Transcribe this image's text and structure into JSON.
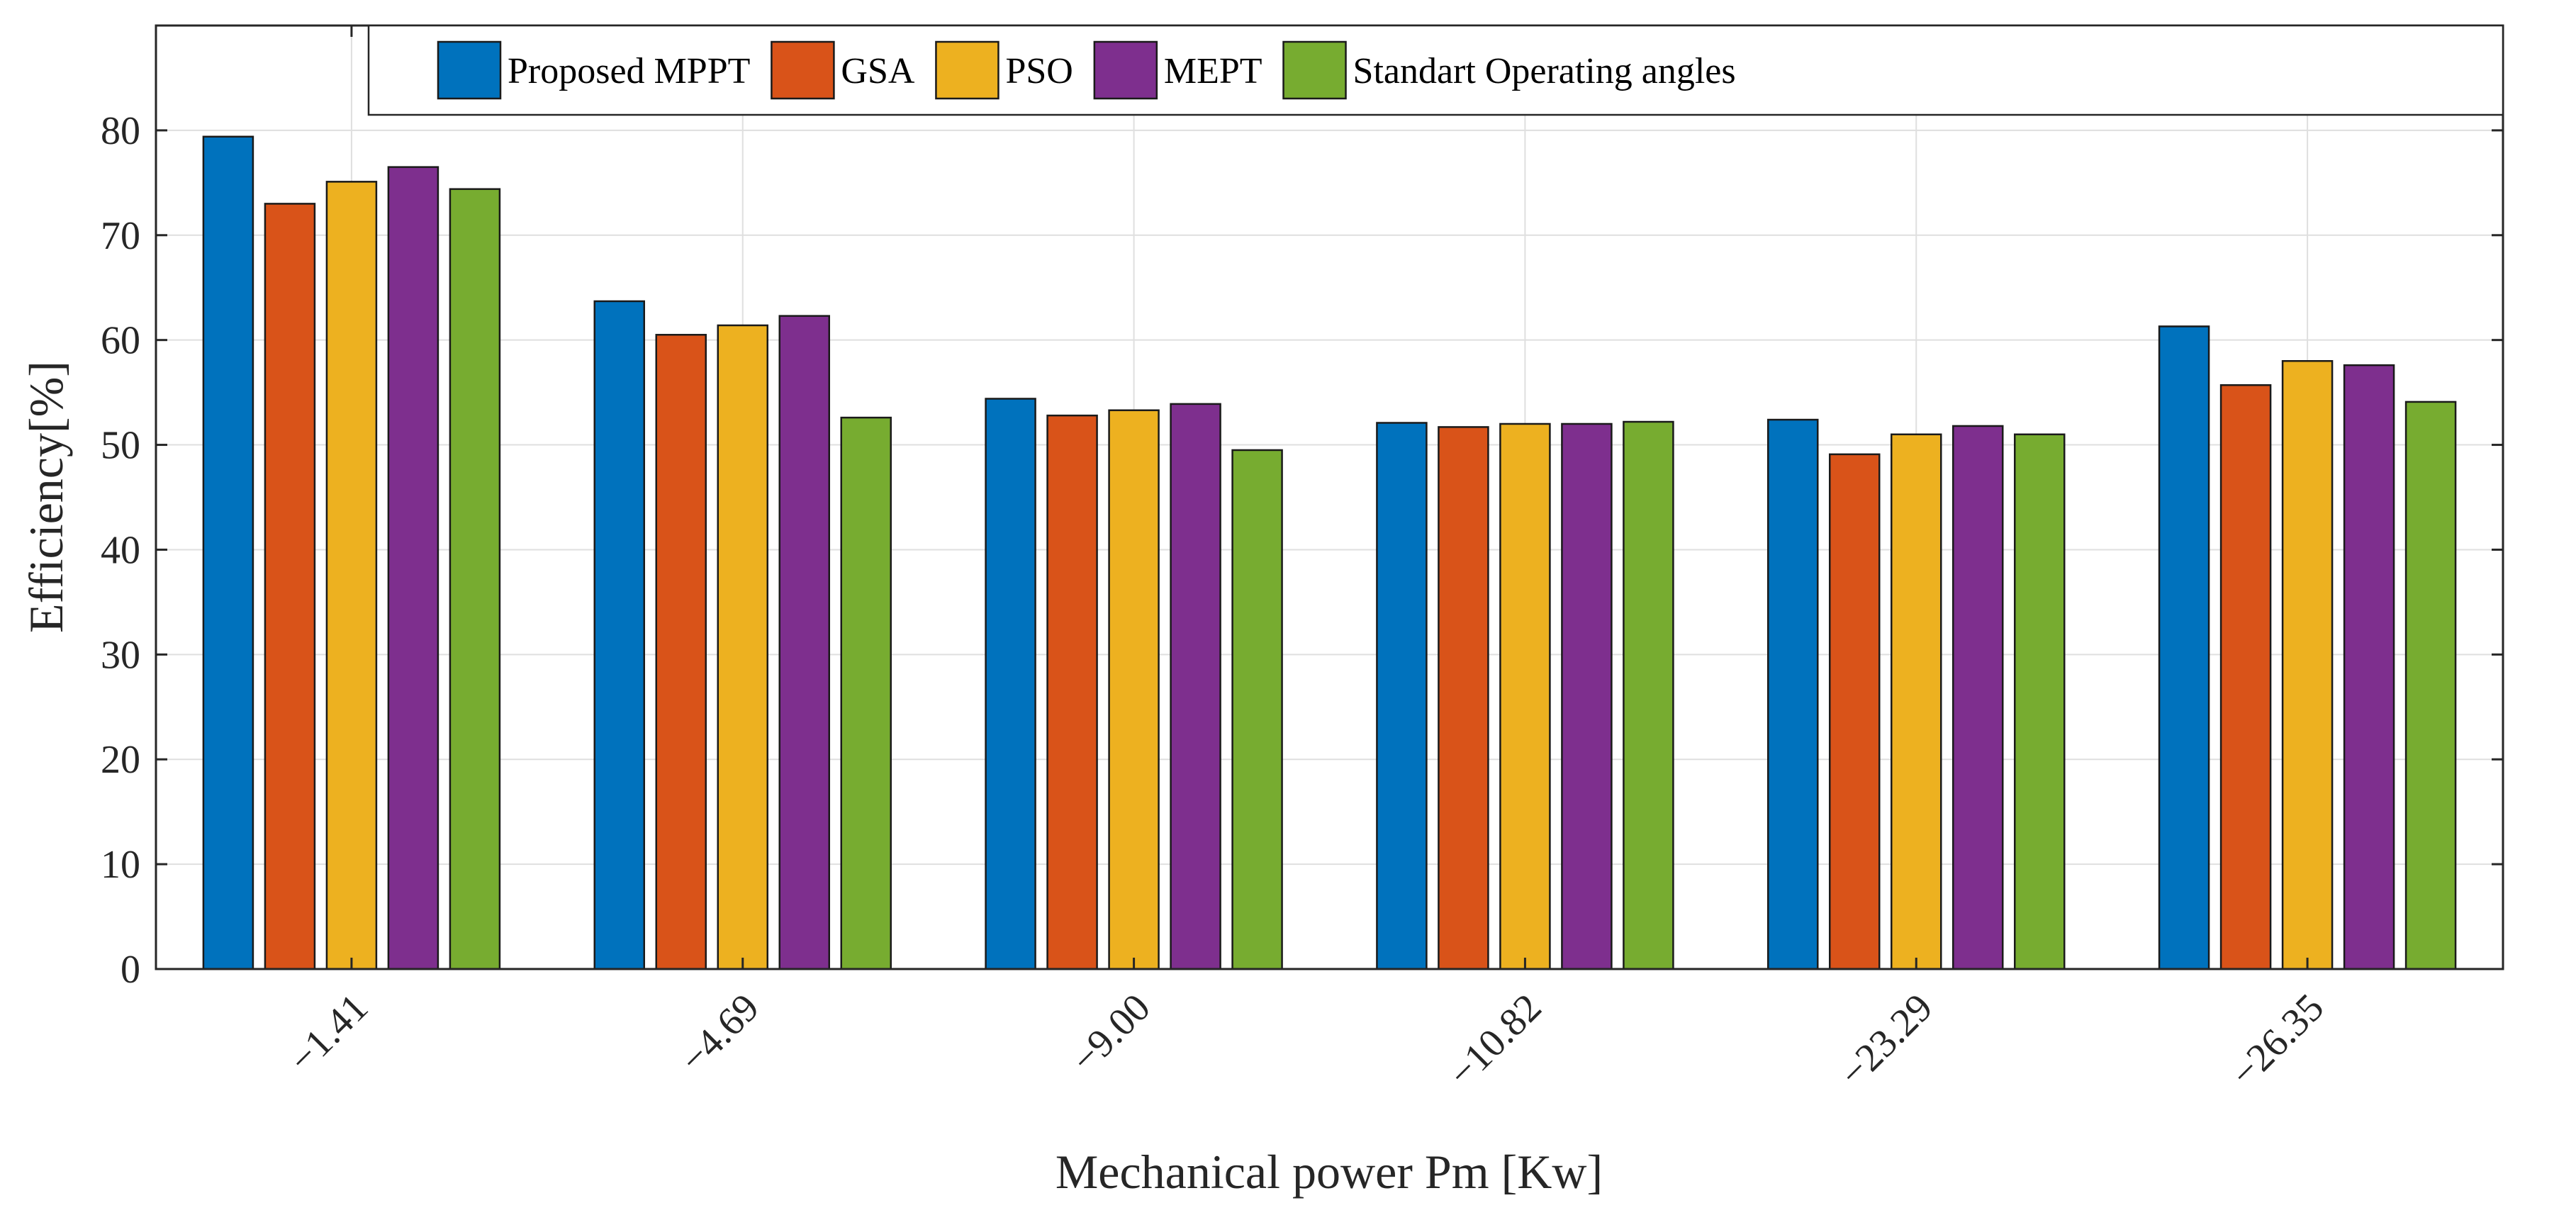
{
  "chart_data": {
    "type": "bar",
    "title": "",
    "xlabel": "Mechanical power Pm [Kw]",
    "ylabel": "Efficiency[%]",
    "ylim": [
      0,
      90
    ],
    "yticks": [
      0,
      10,
      20,
      30,
      40,
      50,
      60,
      70,
      80
    ],
    "grid": true,
    "legend_position": "top",
    "categories": [
      "−1.41",
      "−4.69",
      "−9.00",
      "−10.82",
      "−23.29",
      "−26.35"
    ],
    "series": [
      {
        "name": "Proposed MPPT",
        "color": "#0072bd",
        "values": [
          79.4,
          63.7,
          54.4,
          52.1,
          52.4,
          61.3
        ]
      },
      {
        "name": "GSA",
        "color": "#d95319",
        "values": [
          73.0,
          60.5,
          52.8,
          51.7,
          49.1,
          55.7
        ]
      },
      {
        "name": "PSO",
        "color": "#edb120",
        "values": [
          75.1,
          61.4,
          53.3,
          52.0,
          51.0,
          58.0
        ]
      },
      {
        "name": "MEPT",
        "color": "#7e2f8e",
        "values": [
          76.5,
          62.3,
          53.9,
          52.0,
          51.8,
          57.6
        ]
      },
      {
        "name": "Standart Operating angles",
        "color": "#77ac30",
        "values": [
          74.4,
          52.6,
          49.5,
          52.2,
          51.0,
          54.1
        ]
      }
    ]
  }
}
